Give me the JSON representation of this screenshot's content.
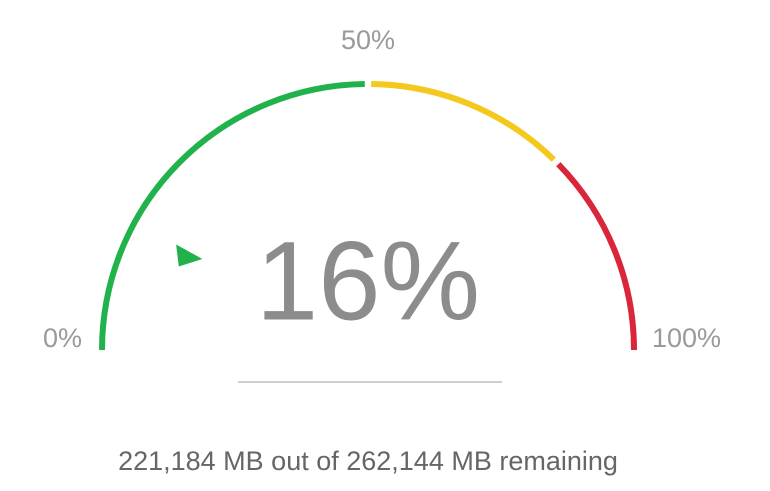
{
  "chart_data": {
    "type": "gauge",
    "value": 16,
    "value_label": "16%",
    "ylim": [
      0,
      100
    ],
    "ticks": [
      {
        "value": 0,
        "label": "0%"
      },
      {
        "value": 50,
        "label": "50%"
      },
      {
        "value": 100,
        "label": "100%"
      }
    ],
    "bands": [
      {
        "from": 0,
        "to": 50,
        "color": "#22b24c"
      },
      {
        "from": 50,
        "to": 75,
        "color": "#f4c81c"
      },
      {
        "from": 75,
        "to": 100,
        "color": "#d9263b"
      }
    ],
    "pointer_color": "#22b24c",
    "subtitle": "221,184 MB out of 262,144 MB remaining"
  }
}
